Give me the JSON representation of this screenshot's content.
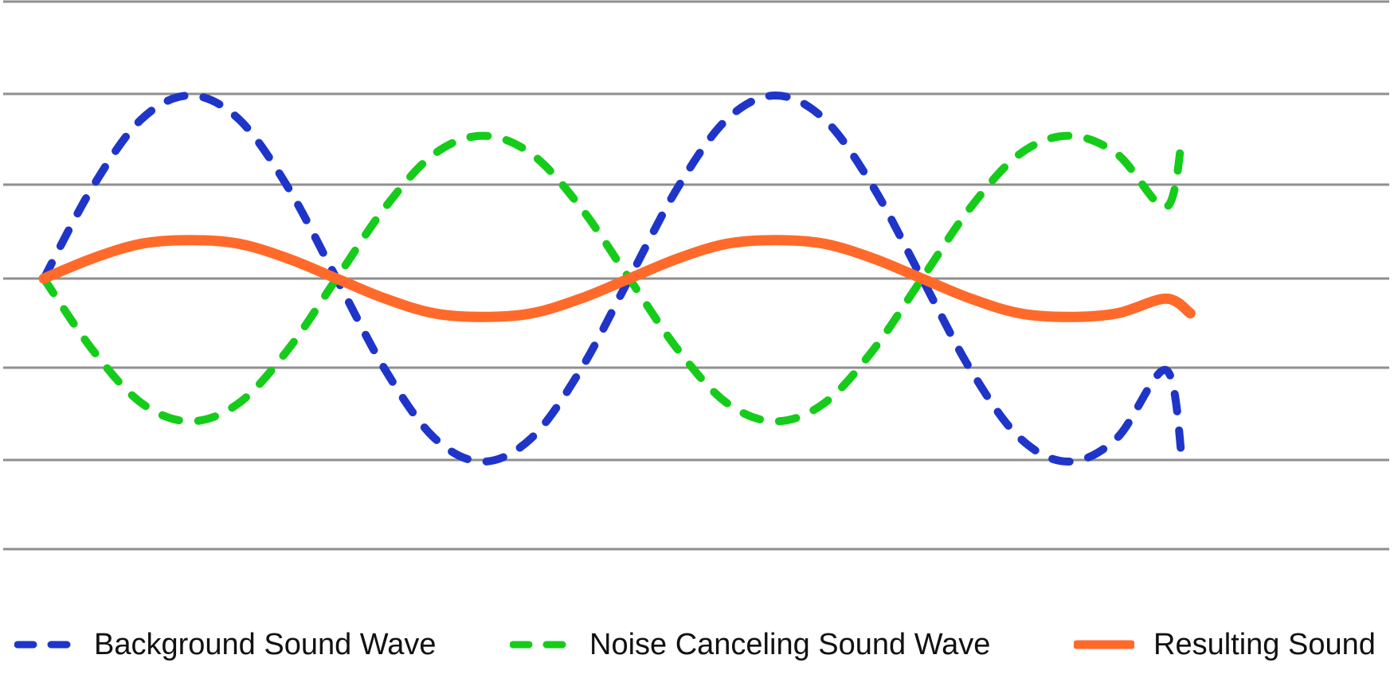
{
  "chart_data": {
    "type": "line",
    "title": "",
    "xlabel": "",
    "ylabel": "",
    "xlim": [
      0,
      720
    ],
    "ylim": [
      -1,
      1
    ],
    "grid": true,
    "legend_position": "bottom",
    "series": [
      {
        "name": "Background Sound Wave",
        "style": "dashed",
        "color": "#1f35c9",
        "x": [
          0,
          30,
          60,
          90,
          120,
          150,
          180,
          210,
          240,
          270,
          300,
          330,
          360,
          390,
          420,
          450,
          480,
          510,
          540,
          570,
          600,
          630,
          660,
          690,
          700
        ],
        "y": [
          0,
          0.5,
          0.87,
          1,
          0.87,
          0.5,
          0,
          -0.5,
          -0.87,
          -1,
          -0.87,
          -0.5,
          0,
          0.5,
          0.87,
          1,
          0.87,
          0.5,
          0,
          -0.5,
          -0.87,
          -1,
          -0.87,
          -0.5,
          -1
        ]
      },
      {
        "name": "Noise Canceling Sound Wave",
        "style": "dashed",
        "color": "#16cc1a",
        "x": [
          0,
          30,
          60,
          90,
          120,
          150,
          180,
          210,
          240,
          270,
          300,
          330,
          360,
          390,
          420,
          450,
          480,
          510,
          540,
          570,
          600,
          630,
          660,
          690,
          700
        ],
        "y": [
          0,
          -0.39,
          -0.68,
          -0.78,
          -0.68,
          -0.39,
          0,
          0.39,
          0.68,
          0.78,
          0.68,
          0.39,
          0,
          -0.39,
          -0.68,
          -0.78,
          -0.68,
          -0.39,
          0,
          0.39,
          0.68,
          0.78,
          0.68,
          0.39,
          0.78
        ]
      },
      {
        "name": "Resulting Sound",
        "style": "solid",
        "color": "#ff6a2a",
        "x": [
          0,
          30,
          60,
          90,
          120,
          150,
          180,
          210,
          240,
          270,
          300,
          330,
          360,
          390,
          420,
          450,
          480,
          510,
          540,
          570,
          600,
          630,
          660,
          690,
          705
        ],
        "y": [
          0,
          0.11,
          0.19,
          0.21,
          0.19,
          0.11,
          0,
          -0.11,
          -0.19,
          -0.21,
          -0.19,
          -0.11,
          0,
          0.11,
          0.19,
          0.21,
          0.19,
          0.11,
          0,
          -0.11,
          -0.19,
          -0.21,
          -0.19,
          -0.11,
          -0.19
        ]
      }
    ]
  }
}
